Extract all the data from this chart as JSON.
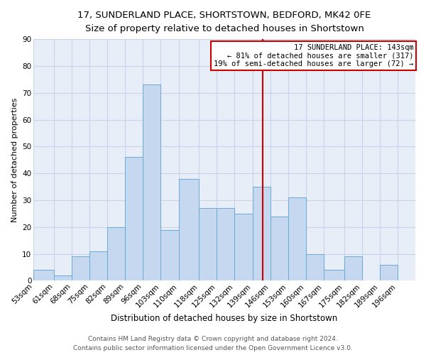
{
  "title": "17, SUNDERLAND PLACE, SHORTSTOWN, BEDFORD, MK42 0FE",
  "subtitle": "Size of property relative to detached houses in Shortstown",
  "xlabel": "Distribution of detached houses by size in Shortstown",
  "ylabel": "Number of detached properties",
  "bin_labels": [
    "53sqm",
    "61sqm",
    "68sqm",
    "75sqm",
    "82sqm",
    "89sqm",
    "96sqm",
    "103sqm",
    "110sqm",
    "118sqm",
    "125sqm",
    "132sqm",
    "139sqm",
    "146sqm",
    "153sqm",
    "160sqm",
    "167sqm",
    "175sqm",
    "182sqm",
    "189sqm",
    "196sqm"
  ],
  "bin_edges": [
    53,
    61,
    68,
    75,
    82,
    89,
    96,
    103,
    110,
    118,
    125,
    132,
    139,
    146,
    153,
    160,
    167,
    175,
    182,
    189,
    196
  ],
  "bar_heights": [
    4,
    2,
    9,
    11,
    20,
    46,
    73,
    19,
    38,
    27,
    27,
    25,
    35,
    24,
    31,
    10,
    4,
    9,
    0,
    6,
    0
  ],
  "bar_color": "#c5d8f0",
  "bar_edge_color": "#6aaad4",
  "vline_x": 143,
  "vline_color": "#cc0000",
  "annotation_title": "17 SUNDERLAND PLACE: 143sqm",
  "annotation_line1": "← 81% of detached houses are smaller (317)",
  "annotation_line2": "19% of semi-detached houses are larger (72) →",
  "annotation_box_color": "#cc0000",
  "annotation_fill": "#ffffff",
  "ylim": [
    0,
    90
  ],
  "yticks": [
    0,
    10,
    20,
    30,
    40,
    50,
    60,
    70,
    80,
    90
  ],
  "grid_color": "#c8d4e8",
  "bg_color": "#e8eef8",
  "footer1": "Contains HM Land Registry data © Crown copyright and database right 2024.",
  "footer2": "Contains public sector information licensed under the Open Government Licence v3.0.",
  "title_fontsize": 9.5,
  "subtitle_fontsize": 8.5,
  "xlabel_fontsize": 8.5,
  "ylabel_fontsize": 8,
  "tick_fontsize": 7.5,
  "annotation_fontsize": 7.5,
  "footer_fontsize": 6.5
}
